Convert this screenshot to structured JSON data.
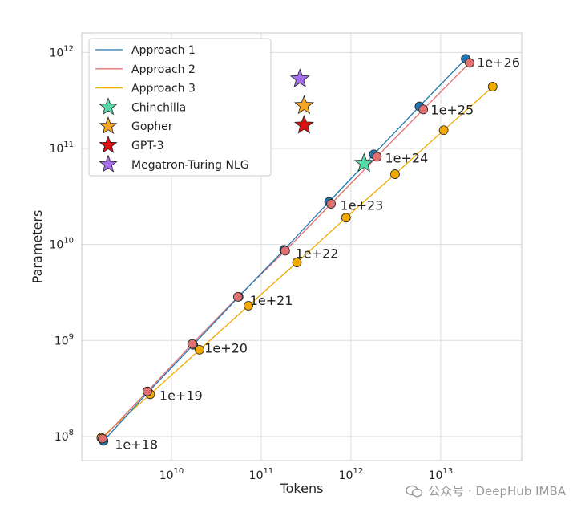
{
  "chart_data": {
    "type": "scatter",
    "xlabel": "Tokens",
    "ylabel": "Parameters",
    "xscale": "log",
    "yscale": "log",
    "xlim": [
      1000000000.0,
      80000000000000.0
    ],
    "ylim": [
      56000000.0,
      1600000000000.0
    ],
    "xticks": [
      {
        "value": 10000000000.0,
        "label": "10^10"
      },
      {
        "value": 100000000000.0,
        "label": "10^11"
      },
      {
        "value": 1000000000000.0,
        "label": "10^12"
      },
      {
        "value": 10000000000000.0,
        "label": "10^13"
      }
    ],
    "yticks": [
      {
        "value": 100000000.0,
        "label": "10^8"
      },
      {
        "value": 1000000000.0,
        "label": "10^9"
      },
      {
        "value": 10000000000.0,
        "label": "10^10"
      },
      {
        "value": 100000000000.0,
        "label": "10^11"
      },
      {
        "value": 1000000000000.0,
        "label": "10^12"
      }
    ],
    "grid": true,
    "legend_position": "top-left",
    "series": [
      {
        "name": "Approach 1",
        "color": "#1f77b4",
        "kind": "line",
        "x": [
          1750000000.0,
          5500000000.0,
          17500000000.0,
          56000000000.0,
          180000000000.0,
          570000000000.0,
          1800000000000.0,
          5800000000000.0,
          19000000000000.0
        ],
        "y": [
          90000000.0,
          290000000.0,
          900000000.0,
          2850000000.0,
          8800000000.0,
          27800000000.0,
          87000000000.0,
          275000000000.0,
          860000000000.0
        ]
      },
      {
        "name": "Approach 2",
        "color": "#e07070",
        "kind": "line",
        "x": [
          1700000000.0,
          5400000000.0,
          17000000000.0,
          55000000000.0,
          185000000000.0,
          600000000000.0,
          1950000000000.0,
          6400000000000.0,
          21000000000000.0
        ],
        "y": [
          95000000.0,
          295000000.0,
          920000000.0,
          2850000000.0,
          8600000000.0,
          26500000000.0,
          82000000000.0,
          255000000000.0,
          780000000000.0
        ]
      },
      {
        "name": "Approach 3",
        "color": "#f2a900",
        "kind": "line",
        "x": [
          1650000000.0,
          5800000000.0,
          20500000000.0,
          72000000000.0,
          250000000000.0,
          880000000000.0,
          3100000000000.0,
          10800000000000.0,
          38000000000000.0
        ],
        "y": [
          97000000.0,
          275000000.0,
          800000000.0,
          2300000000.0,
          6500000000.0,
          19000000000.0,
          54000000000.0,
          155000000000.0,
          440000000000.0
        ]
      }
    ],
    "compute_labels": {
      "texts": [
        "1e+18",
        "1e+19",
        "1e+20",
        "1e+21",
        "1e+22",
        "1e+23",
        "1e+24",
        "1e+25",
        "1e+26"
      ],
      "anchor_x": [
        1750000000.0,
        5500000000.0,
        17500000000.0,
        56000000000.0,
        180000000000.0,
        570000000000.0,
        1800000000000.0,
        5800000000000.0,
        19000000000000.0
      ],
      "anchor_y": [
        90000000.0,
        290000000.0,
        900000000.0,
        2850000000.0,
        8800000000.0,
        27800000000.0,
        87000000000.0,
        275000000000.0,
        860000000000.0
      ]
    },
    "models": [
      {
        "name": "Chinchilla",
        "color": "#58d9a8",
        "x": 1400000000000.0,
        "y": 70000000000.0
      },
      {
        "name": "Gopher",
        "color": "#f5a623",
        "x": 300000000000.0,
        "y": 280000000000.0
      },
      {
        "name": "GPT-3",
        "color": "#dd1111",
        "x": 300000000000.0,
        "y": 175000000000.0
      },
      {
        "name": "Megatron-Turing NLG",
        "color": "#a56ee8",
        "x": 270000000000.0,
        "y": 530000000000.0
      }
    ]
  },
  "watermark": "公众号 · DeepHub IMBA"
}
